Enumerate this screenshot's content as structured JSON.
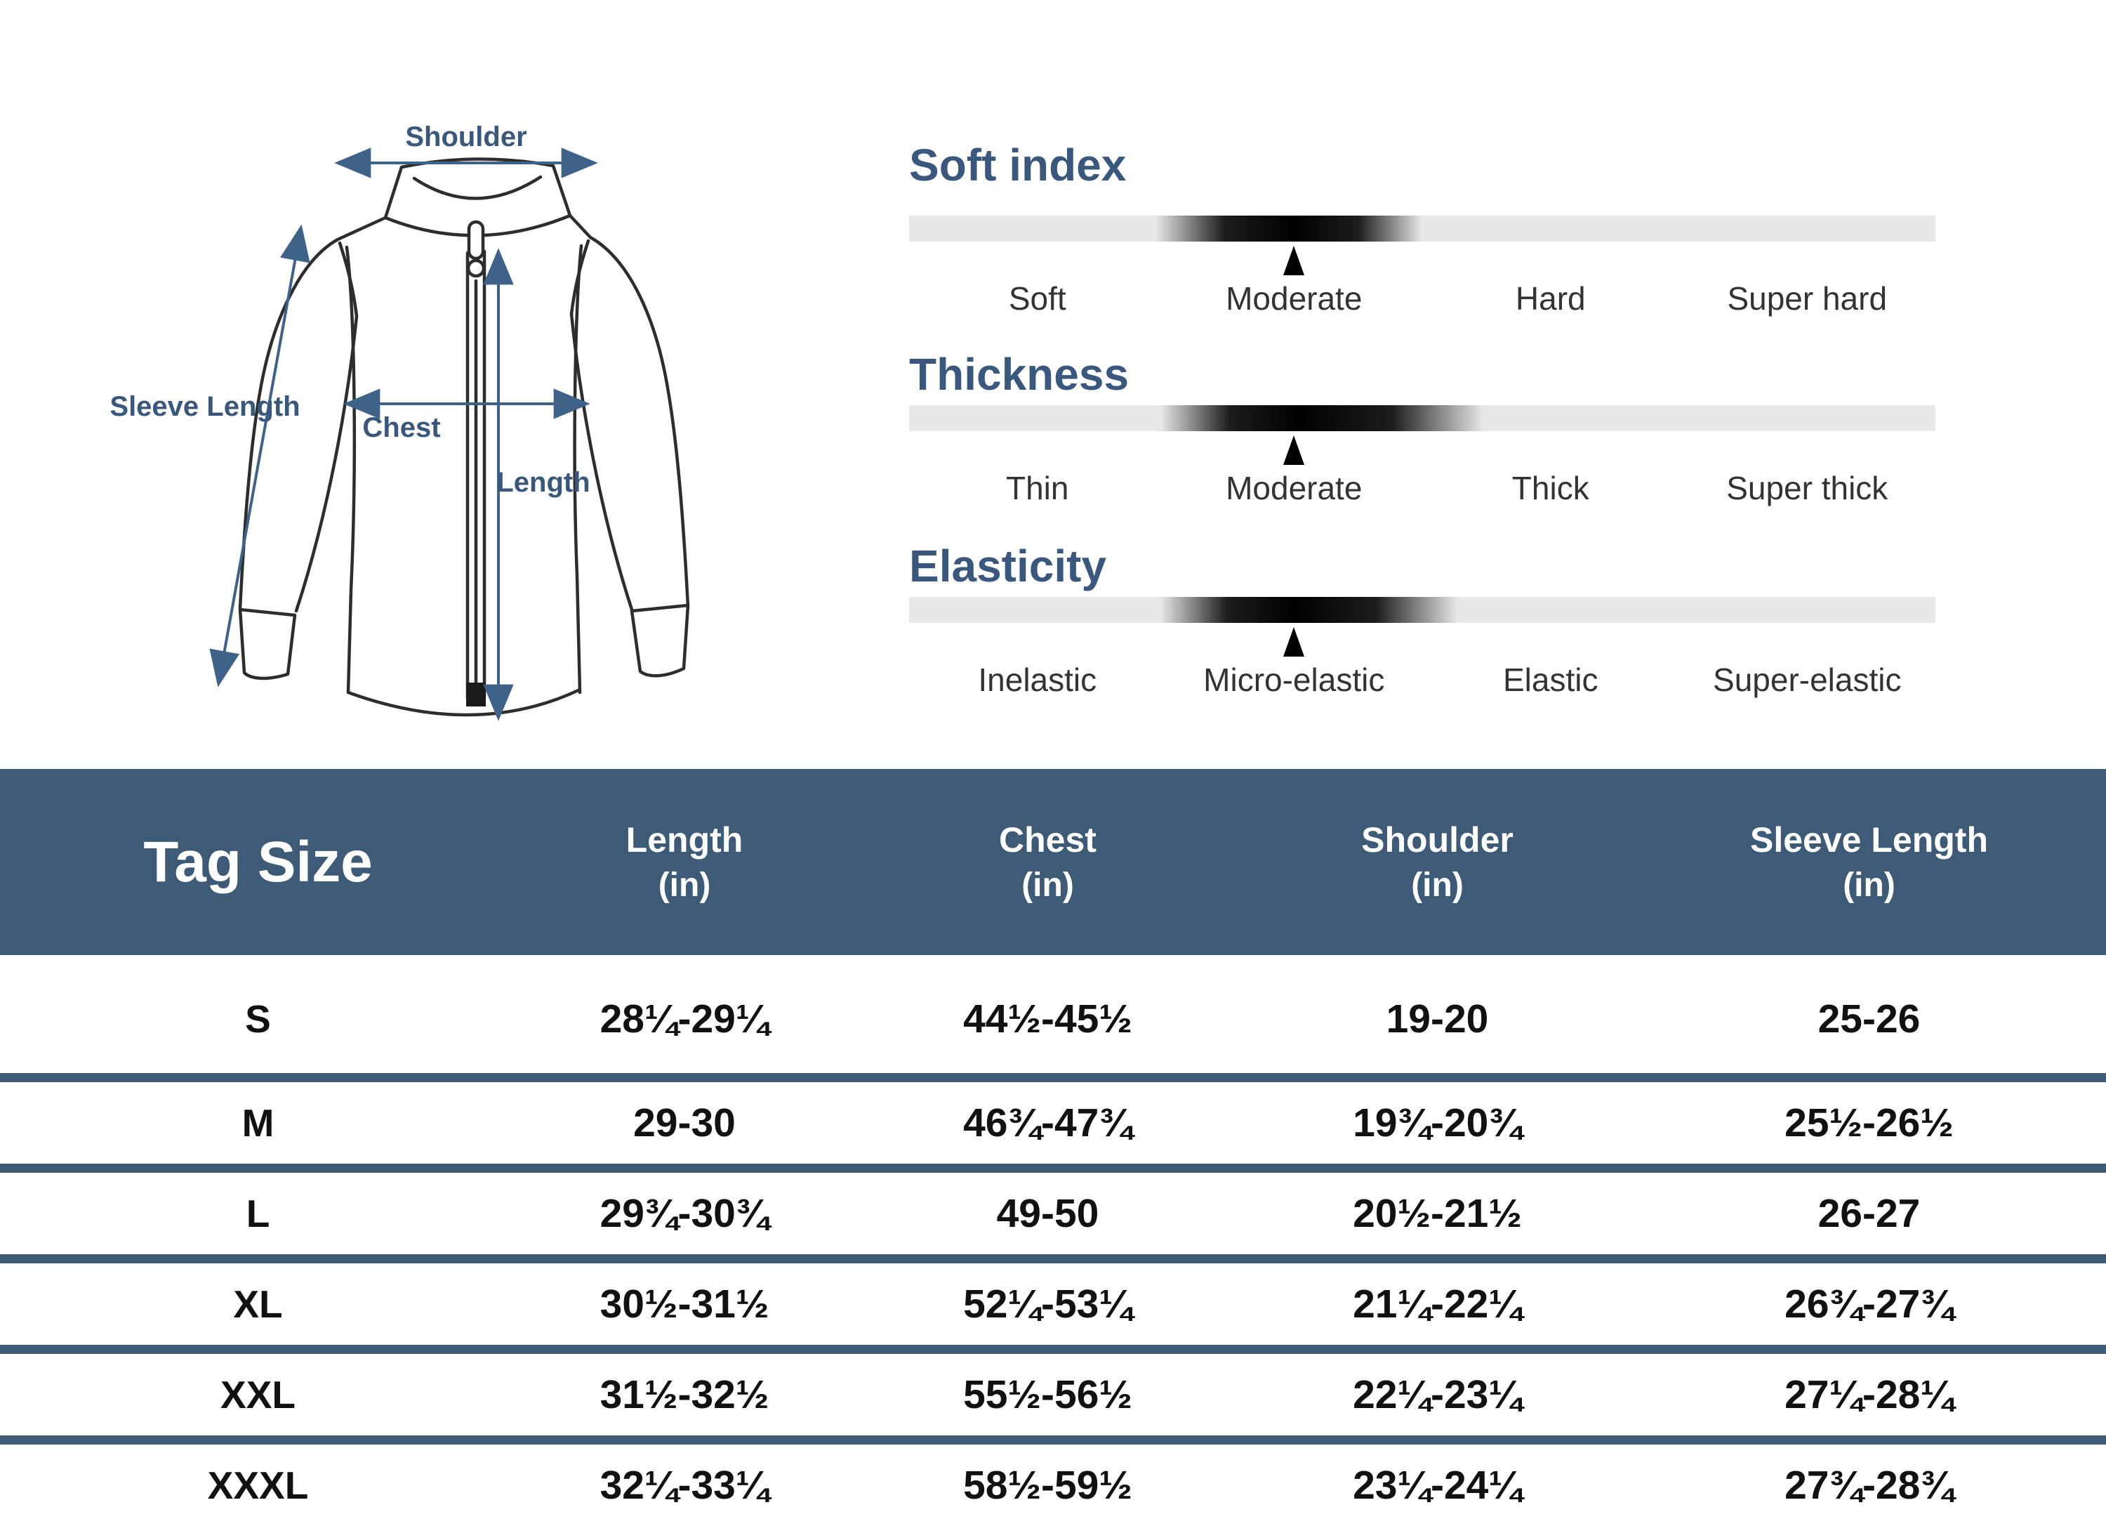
{
  "colors": {
    "accent_blue": "#3d5a77",
    "title_blue": "#3a587e",
    "bar_gray": "#e8e8e8",
    "marker_black": "#000000",
    "diagram_line": "#2d2d2d",
    "diagram_arrow": "#3e6288",
    "cell_text": "#111111"
  },
  "diagram": {
    "shoulder_label": "Shoulder",
    "sleeve_length_label": "Sleeve Length",
    "chest_label": "Chest",
    "length_label": "Length"
  },
  "indices": [
    {
      "title": "Soft index",
      "labels": [
        "Soft",
        "Moderate",
        "Hard",
        "Super hard"
      ],
      "selected_label": "Moderate",
      "marker_pct": 37.5,
      "blob": {
        "start": 24,
        "peak": 37.5,
        "end": 50
      }
    },
    {
      "title": "Thickness",
      "labels": [
        "Thin",
        "Moderate",
        "Thick",
        "Super thick"
      ],
      "selected_label": "Moderate",
      "marker_pct": 37.5,
      "blob": {
        "start": 24.5,
        "peak": 38,
        "end": 56
      }
    },
    {
      "title": "Elasticity",
      "labels": [
        "Inelastic",
        "Micro-elastic",
        "Elastic",
        "Super-elastic"
      ],
      "selected_label": "Micro-elastic",
      "marker_pct": 37.5,
      "blob": {
        "start": 24.5,
        "peak": 37.5,
        "end": 53.5
      }
    }
  ],
  "size_table": {
    "columns": [
      "Tag Size",
      "Length",
      "Chest",
      "Shoulder",
      "Sleeve Length"
    ],
    "unit": "(in)",
    "rows": [
      {
        "size": "S",
        "length": "28¼-29¼",
        "chest": "44½-45½",
        "shoulder": "19-20",
        "sleeve": "25-26"
      },
      {
        "size": "M",
        "length": "29-30",
        "chest": "46¾-47¾",
        "shoulder": "19¾-20¾",
        "sleeve": "25½-26½"
      },
      {
        "size": "L",
        "length": "29¾-30¾",
        "chest": "49-50",
        "shoulder": "20½-21½",
        "sleeve": "26-27"
      },
      {
        "size": "XL",
        "length": "30½-31½",
        "chest": "52¼-53¼",
        "shoulder": "21¼-22¼",
        "sleeve": "26¾-27¾"
      },
      {
        "size": "XXL",
        "length": "31½-32½",
        "chest": "55½-56½",
        "shoulder": "22¼-23¼",
        "sleeve": "27¼-28¼"
      },
      {
        "size": "XXXL",
        "length": "32¼-33¼",
        "chest": "58½-59½",
        "shoulder": "23¼-24¼",
        "sleeve": "27¾-28¾"
      }
    ]
  }
}
